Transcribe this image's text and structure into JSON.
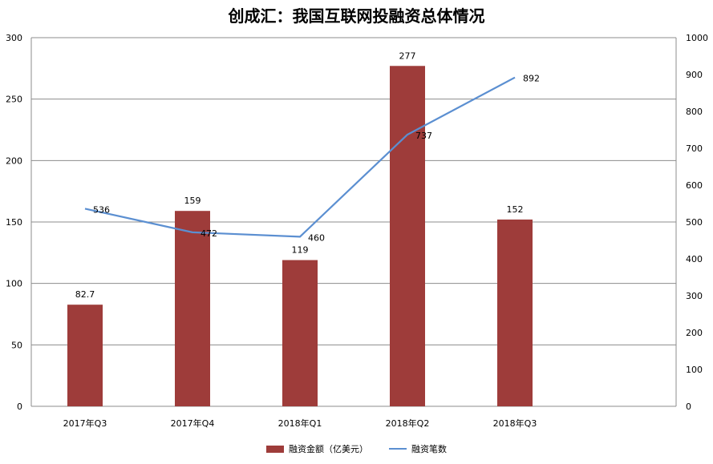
{
  "chart_data": {
    "type": "bar",
    "title": "创成汇：我国互联网投融资总体情况",
    "categories": [
      "2017年Q3",
      "2017年Q4",
      "2018年Q1",
      "2018年Q2",
      "2018年Q3"
    ],
    "series": [
      {
        "name": "融资金额（亿美元）",
        "type": "bar",
        "axis": "left",
        "values": [
          82.7,
          159,
          119,
          277,
          152
        ],
        "labels": [
          "82.7",
          "159",
          "119",
          "277",
          "152"
        ],
        "color": "#9e3c3a"
      },
      {
        "name": "融资笔数",
        "type": "line",
        "axis": "right",
        "values": [
          536,
          472,
          460,
          737,
          892
        ],
        "labels": [
          "536",
          "472",
          "460",
          "737",
          "892"
        ],
        "color": "#5b8fd1"
      }
    ],
    "y_left": {
      "min": 0,
      "max": 300,
      "ticks": [
        "0",
        "50",
        "100",
        "150",
        "200",
        "250",
        "300"
      ]
    },
    "y_right": {
      "min": 0,
      "max": 1000,
      "ticks": [
        "0",
        "100",
        "200",
        "300",
        "400",
        "500",
        "600",
        "700",
        "800",
        "900",
        "1000"
      ]
    },
    "grid": true,
    "legend_position": "bottom"
  }
}
